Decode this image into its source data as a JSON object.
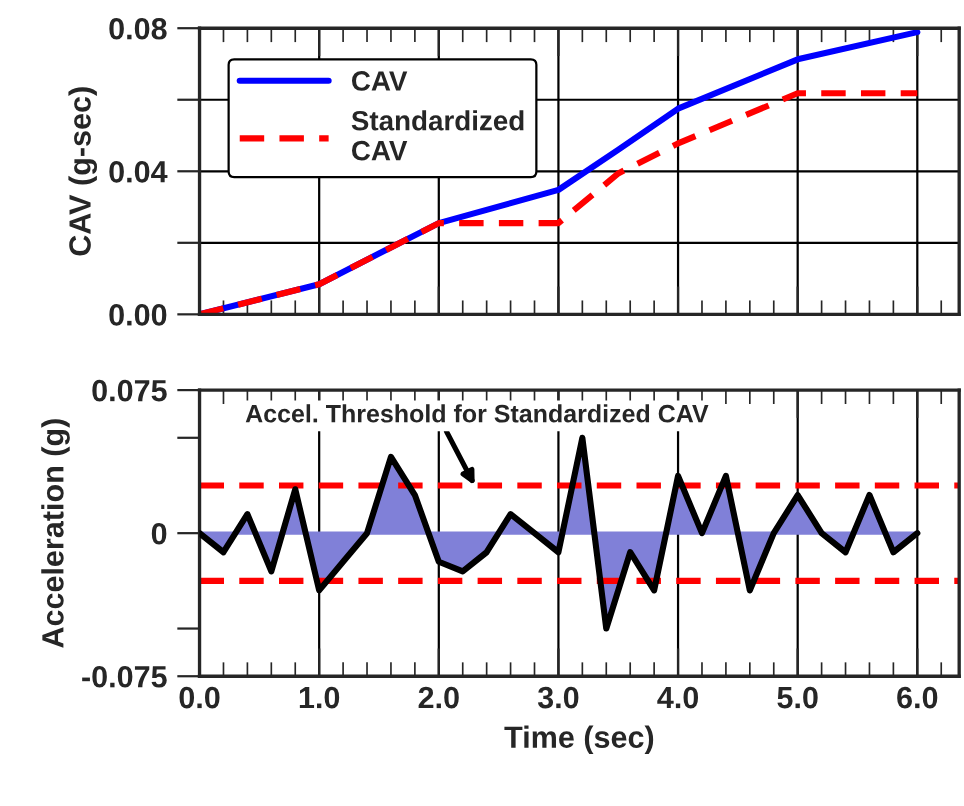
{
  "chart_data": [
    {
      "type": "line",
      "ylabel": "CAV (g-sec)",
      "xlim": [
        0,
        6.35
      ],
      "xticks": [
        0,
        1,
        2,
        3,
        4,
        5,
        6
      ],
      "ylim": [
        0,
        0.08
      ],
      "yticks": [
        {
          "value": 0,
          "label": "0.00"
        },
        {
          "value": 0.02,
          "label": null
        },
        {
          "value": 0.04,
          "label": "0.04"
        },
        {
          "value": 0.06,
          "label": null
        },
        {
          "value": 0.08,
          "label": "0.08"
        }
      ],
      "tick_labels": "y",
      "grid": true,
      "legend": "top left",
      "series": [
        {
          "name": "CAV",
          "color": "#0000ff",
          "line_style": "solid",
          "x": [
            0,
            1,
            1.5,
            2,
            3,
            3.5,
            4,
            5,
            6
          ],
          "values": [
            0,
            0.0084,
            0.017,
            0.0255,
            0.0348,
            0.046,
            0.0575,
            0.0713,
            0.0789
          ]
        },
        {
          "name": "Standardized\nCAV",
          "color": "#ff0000",
          "line_style": "dashed",
          "x": [
            0,
            1,
            1.5,
            2,
            3,
            3.5,
            4,
            5,
            6
          ],
          "values": [
            0,
            0.0084,
            0.017,
            0.0255,
            0.0255,
            0.0394,
            0.0478,
            0.0618,
            0.0618
          ]
        }
      ]
    },
    {
      "type": "area",
      "xlabel": "Time (sec)",
      "ylabel": "Acceleration (g)",
      "xlim": [
        0,
        6.35
      ],
      "xticks": [
        {
          "value": 0,
          "label": "0.0"
        },
        {
          "value": 1,
          "label": "1.0"
        },
        {
          "value": 2,
          "label": "2.0"
        },
        {
          "value": 3,
          "label": "3.0"
        },
        {
          "value": 4,
          "label": "4.0"
        },
        {
          "value": 5,
          "label": "5.0"
        },
        {
          "value": 6,
          "label": "6.0"
        }
      ],
      "ylim": [
        -0.075,
        0.075
      ],
      "yticks": [
        -0.075,
        {
          "value": -0.05,
          "label": null
        },
        0,
        {
          "value": 0.05,
          "label": null
        },
        0.075
      ],
      "grid": "x",
      "series": [
        {
          "color": "#8080d8",
          "x": [
            0,
            0.2,
            0.4,
            0.6,
            0.8,
            1.0,
            1.2,
            1.4,
            1.6,
            1.8,
            2.0,
            2.2,
            2.4,
            2.6,
            2.8,
            3.0,
            3.2,
            3.4,
            3.6,
            3.8,
            4.0,
            4.2,
            4.4,
            4.6,
            4.8,
            5.0,
            5.2,
            5.4,
            5.6,
            5.8,
            6.0
          ],
          "values": [
            0,
            -0.01,
            0.01,
            -0.02,
            0.023,
            -0.03,
            -0.015,
            0,
            0.04,
            0.02,
            -0.015,
            -0.02,
            -0.01,
            0.01,
            0,
            -0.01,
            0.05,
            -0.05,
            -0.01,
            -0.03,
            0.03,
            0,
            0.03,
            -0.03,
            0,
            0.02,
            0,
            -0.01,
            0.02,
            -0.01,
            0
          ]
        }
      ],
      "ref_lines": [
        {
          "axis": "y",
          "value": 0.025,
          "color": "#ff0000",
          "line_style": "dashed"
        },
        {
          "axis": "y",
          "value": -0.025,
          "color": "#ff0000",
          "line_style": "dashed"
        }
      ],
      "annotations": [
        {
          "text": "Accel. Threshold for Standardized CAV",
          "x": 2.3,
          "y": 0.025
        }
      ]
    }
  ]
}
